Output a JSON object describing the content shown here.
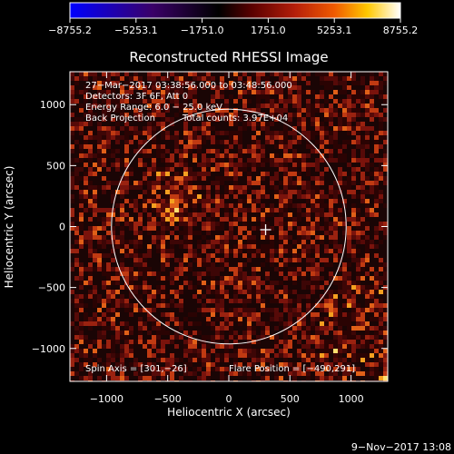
{
  "chart_data": {
    "type": "heatmap",
    "title": "Reconstructed RHESSI Image",
    "xlabel": "Heliocentric X (arcsec)",
    "ylabel": "Heliocentric Y (arcsec)",
    "xlim": [
      -1300,
      1300
    ],
    "ylim": [
      -1270,
      1270
    ],
    "x_ticks": [
      -1000,
      -500,
      0,
      500,
      1000
    ],
    "y_ticks": [
      -1000,
      -500,
      0,
      500,
      1000
    ],
    "x_tick_labels": [
      "−1000",
      "−500",
      "0",
      "500",
      "1000"
    ],
    "y_tick_labels": [
      "−1000",
      "−500",
      "0",
      "500",
      "1000"
    ],
    "colorbar": {
      "min": -8755.2,
      "max": 8755.2,
      "tick_values": [
        -8755.2,
        -5253.1,
        -1751.0,
        1751.0,
        5253.1,
        8755.2
      ],
      "tick_labels": [
        "−8755.2",
        "−5253.1",
        "−1751.0",
        "1751.0",
        "5253.1",
        "8755.2"
      ],
      "colors": [
        "#0000ff",
        "#3a0068",
        "#000000",
        "#5a0000",
        "#b41e0a",
        "#f05a00",
        "#ffc800",
        "#ffffff"
      ]
    },
    "annotations": {
      "time_range": "27−Mar−2017 03:38:56.000 to 03:48:56.000",
      "detectors": "Detectors: 3F 6F, Att 0",
      "energy": "Energy Range: 6.0 − 25.0 keV",
      "method": "Back Projection",
      "counts": "Total counts: 3.97E+04",
      "spin_axis": "Spin Axis = [301,−26]",
      "flare_position": "Flare Position = [−490,291]"
    },
    "solar_limb_radius_arcsec": 960,
    "spin_axis": [
      301,
      -26
    ],
    "flare_position": [
      -490,
      291
    ],
    "hotspot": [
      -480,
      280
    ],
    "background_level": "noise",
    "grid": false
  },
  "footer": {
    "timestamp": "9−Nov−2017 13:08"
  }
}
